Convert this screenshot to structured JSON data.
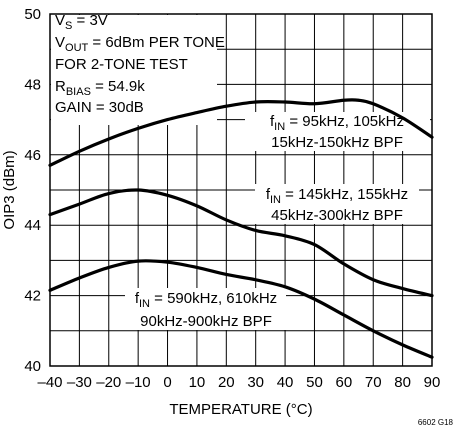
{
  "chart_data": {
    "type": "line",
    "xlabel": "TEMPERATURE (°C)",
    "ylabel": "OIP3 (dBm)",
    "xlim": [
      -40,
      90
    ],
    "ylim": [
      40,
      50
    ],
    "xticks": [
      -40,
      -30,
      -20,
      -10,
      0,
      10,
      20,
      30,
      40,
      50,
      60,
      70,
      80,
      90
    ],
    "yticks": [
      40,
      42,
      44,
      46,
      48,
      50
    ],
    "xtick_labels": [
      "–40",
      "–30",
      "–20",
      "–10",
      "0",
      "10",
      "20",
      "30",
      "40",
      "50",
      "60",
      "70",
      "80",
      "90"
    ],
    "ytick_labels": [
      "40",
      "42",
      "44",
      "46",
      "48",
      "50"
    ],
    "grid": true,
    "conditions": [
      {
        "main": "V",
        "sub": "S",
        "rest": " = 3V"
      },
      {
        "main": "V",
        "sub": "OUT",
        "rest": " = 6dBm PER TONE"
      },
      {
        "main": "FOR 2-TONE TEST",
        "sub": "",
        "rest": ""
      },
      {
        "main": "R",
        "sub": "BIAS",
        "rest": " = 54.9k"
      },
      {
        "main": "GAIN = 30dB",
        "sub": "",
        "rest": ""
      }
    ],
    "series": [
      {
        "label_line1": {
          "main": "f",
          "sub": "IN",
          "rest": " = 95kHz, 105kHz"
        },
        "label_line2": "15kHz-150kHz BPF",
        "x": [
          -40,
          -30,
          -20,
          -10,
          0,
          10,
          20,
          30,
          40,
          50,
          60,
          65,
          70,
          80,
          90
        ],
        "y": [
          45.7,
          46.1,
          46.45,
          46.75,
          47.0,
          47.2,
          47.38,
          47.5,
          47.5,
          47.45,
          47.55,
          47.55,
          47.45,
          47.05,
          46.5
        ]
      },
      {
        "label_line1": {
          "main": "f",
          "sub": "IN",
          "rest": " = 145kHz, 155kHz"
        },
        "label_line2": "45kHz-300kHz BPF",
        "x": [
          -40,
          -30,
          -20,
          -10,
          0,
          10,
          20,
          30,
          40,
          50,
          60,
          70,
          80,
          90
        ],
        "y": [
          44.3,
          44.6,
          44.9,
          45.0,
          44.85,
          44.55,
          44.15,
          43.85,
          43.7,
          43.45,
          42.9,
          42.45,
          42.2,
          42.0
        ]
      },
      {
        "label_line1": {
          "main": "f",
          "sub": "IN",
          "rest": " = 590kHz, 610kHz"
        },
        "label_line2": "90kHz-900kHz BPF",
        "x": [
          -40,
          -30,
          -20,
          -10,
          0,
          10,
          20,
          30,
          40,
          50,
          60,
          70,
          80,
          90
        ],
        "y": [
          42.15,
          42.5,
          42.8,
          42.98,
          42.95,
          42.8,
          42.6,
          42.45,
          42.25,
          41.9,
          41.45,
          41.0,
          40.6,
          40.25
        ]
      }
    ],
    "figure_id": "6602 G18"
  }
}
